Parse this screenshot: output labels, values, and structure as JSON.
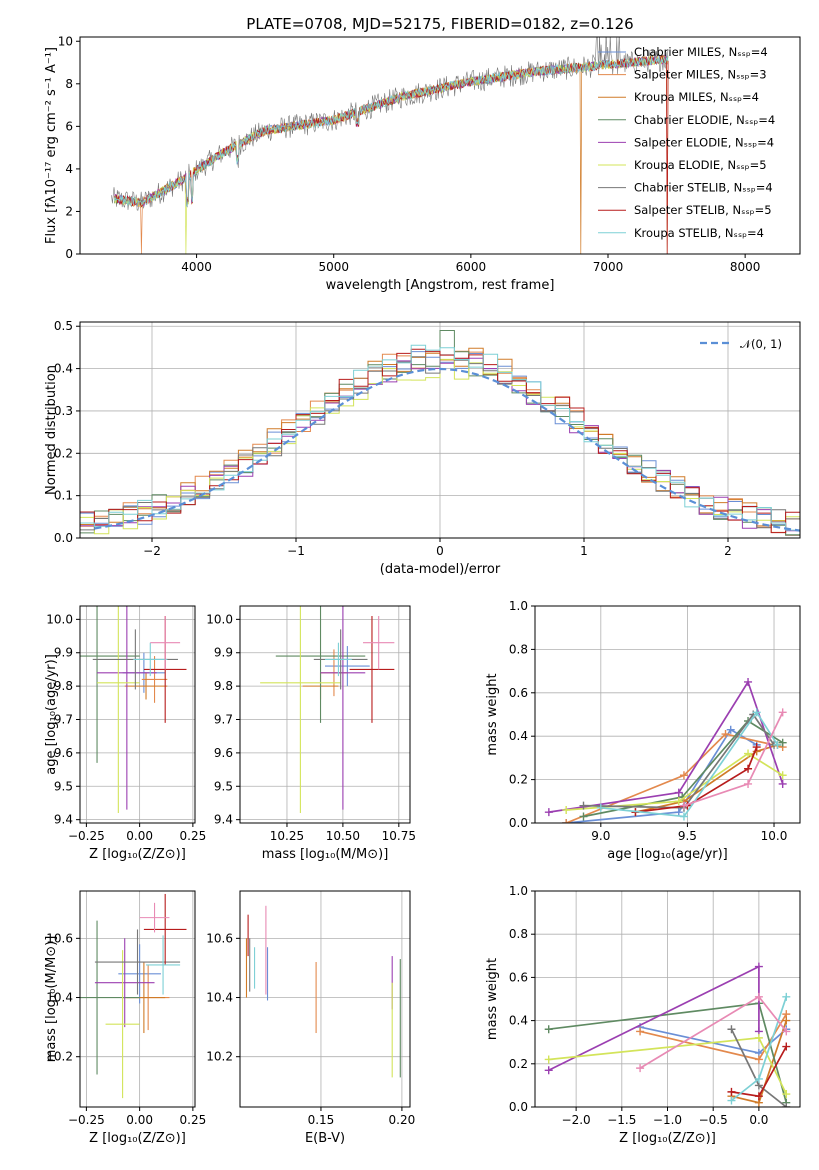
{
  "colors": {
    "series": [
      "#6a8fd6",
      "#e3894d",
      "#d07b28",
      "#5f8a62",
      "#9b3fb1",
      "#d3e45a",
      "#777777",
      "#b71c1c",
      "#7dd0d5"
    ],
    "extra_pink": "#e88ab4",
    "normal_curve": "#5a8fd6",
    "grid": "#b0b0b0"
  },
  "chart_data": [
    {
      "type": "line",
      "title": "PLATE=0708, MJD=52175, FIBERID=0182, z=0.126",
      "xlabel": "wavelength [Angstrom, rest frame]",
      "ylabel": "Flux [fλ10⁻¹⁷ erg cm⁻² s⁻¹ A⁻¹]",
      "xlim": [
        3150,
        8400
      ],
      "ylim": [
        0,
        10.2
      ],
      "xticks": [
        "4000",
        "5000",
        "6000",
        "7000",
        "8000"
      ],
      "yticks": [
        "0",
        "2",
        "4",
        "6",
        "8",
        "10"
      ],
      "grid": false,
      "legend_position": "right",
      "legend": [
        "Chabrier MILES, Nₛₛₚ=4",
        "Salpeter MILES, Nₛₛₚ=3",
        "Kroupa MILES, Nₛₛₚ=4",
        "Chabrier ELODIE, Nₛₛₚ=4",
        "Salpeter ELODIE, Nₛₛₚ=4",
        "Kroupa ELODIE, Nₛₛₚ=5",
        "Chabrier STELIB, Nₛₛₚ=4",
        "Salpeter STELIB, Nₛₛₚ=5",
        "Kroupa STELIB, Nₛₛₚ=4"
      ],
      "continuum": {
        "x": [
          3400,
          3600,
          3900,
          4200,
          4500,
          5000,
          5500,
          6000,
          6500,
          7000,
          7500
        ],
        "y": [
          2.6,
          2.4,
          3.5,
          4.8,
          5.8,
          6.3,
          7.4,
          8.1,
          8.6,
          8.9,
          9.2
        ]
      },
      "gaps": [
        3600,
        3920,
        4950,
        6800,
        7430
      ]
    },
    {
      "type": "bar",
      "xlabel": "(data-model)/error",
      "ylabel": "Normed distribution",
      "xlim": [
        -2.5,
        2.5
      ],
      "ylim": [
        0,
        0.51
      ],
      "xticks": [
        "−2",
        "−1",
        "0",
        "1",
        "2"
      ],
      "yticks": [
        "0.0",
        "0.1",
        "0.2",
        "0.3",
        "0.4",
        "0.5"
      ],
      "grid": true,
      "legend_position": "top-right",
      "legend": [
        "𝒩(0, 1)"
      ],
      "bin_width": 0.1,
      "normal_mean": 0,
      "normal_sigma": 1
    },
    {
      "type": "scatter",
      "xlabel": "Z [log₁₀(Z/Z⊙)]",
      "ylabel": "age  [log₁₀(age/yr)]",
      "xlim": [
        -0.28,
        0.26
      ],
      "ylim": [
        9.39,
        10.04
      ],
      "xticks": [
        "−0.25",
        "0.00",
        "0.25"
      ],
      "yticks": [
        "9.4",
        "9.5",
        "9.6",
        "9.7",
        "9.8",
        "9.9",
        "10.0"
      ],
      "grid": true,
      "errorbars": [
        {
          "x": 0.02,
          "y": 9.84,
          "xerr": 0.1,
          "yerr": 0.06
        },
        {
          "x": 0.07,
          "y": 9.82,
          "xerr": 0.06,
          "yerr": 0.07
        },
        {
          "x": 0.03,
          "y": 9.8,
          "xerr": 0.1,
          "yerr": 0.04
        },
        {
          "x": -0.2,
          "y": 9.89,
          "xerr": 0.2,
          "yerr": 0.32
        },
        {
          "x": -0.06,
          "y": 9.84,
          "xerr": 0.14,
          "yerr": 0.41
        },
        {
          "x": -0.1,
          "y": 9.81,
          "xerr": 0.1,
          "yerr": 0.39
        },
        {
          "x": -0.02,
          "y": 9.88,
          "xerr": 0.2,
          "yerr": 0.09
        },
        {
          "x": 0.12,
          "y": 9.85,
          "xerr": 0.1,
          "yerr": 0.16
        },
        {
          "x": 0.05,
          "y": 9.88,
          "xerr": 0.08,
          "yerr": 0.05
        },
        {
          "x": 0.12,
          "y": 9.93,
          "xerr": 0.07,
          "yerr": 0.08
        }
      ]
    },
    {
      "type": "scatter",
      "xlabel": "mass [log₁₀(M/M⊙)]",
      "ylabel": "",
      "xlim": [
        10.04,
        10.8
      ],
      "ylim": [
        9.39,
        10.04
      ],
      "xticks": [
        "10.25",
        "10.50",
        "10.75"
      ],
      "yticks": [
        "9.4",
        "9.5",
        "9.6",
        "9.7",
        "9.8",
        "9.9",
        "10.0"
      ],
      "grid": true,
      "errorbars": [
        {
          "x": 10.52,
          "y": 9.86,
          "xerr": 0.1,
          "yerr": 0.06
        },
        {
          "x": 10.46,
          "y": 9.84,
          "xerr": 0.06,
          "yerr": 0.07
        },
        {
          "x": 10.4,
          "y": 9.8,
          "xerr": 0.08,
          "yerr": 0.04
        },
        {
          "x": 10.4,
          "y": 9.89,
          "xerr": 0.2,
          "yerr": 0.2
        },
        {
          "x": 10.5,
          "y": 9.84,
          "xerr": 0.1,
          "yerr": 0.41
        },
        {
          "x": 10.31,
          "y": 9.81,
          "xerr": 0.18,
          "yerr": 0.39
        },
        {
          "x": 10.49,
          "y": 9.88,
          "xerr": 0.12,
          "yerr": 0.09
        },
        {
          "x": 10.63,
          "y": 9.85,
          "xerr": 0.1,
          "yerr": 0.16
        },
        {
          "x": 10.48,
          "y": 9.88,
          "xerr": 0.06,
          "yerr": 0.05
        },
        {
          "x": 10.66,
          "y": 9.93,
          "xerr": 0.07,
          "yerr": 0.08
        }
      ]
    },
    {
      "type": "line",
      "xlabel": "age  [log₁₀(age/yr)]",
      "ylabel": "mass weight",
      "xlim": [
        8.62,
        10.15
      ],
      "ylim": [
        0,
        1
      ],
      "xticks": [
        "9.0",
        "9.5",
        "10.0"
      ],
      "yticks": [
        "0.0",
        "0.2",
        "0.4",
        "0.6",
        "0.8",
        "1.0"
      ],
      "grid": true,
      "series": [
        {
          "x": [
            8.8,
            9.45,
            9.75,
            9.9
          ],
          "y": [
            0.0,
            0.05,
            0.43,
            0.36
          ]
        },
        {
          "x": [
            8.8,
            9.48,
            9.72,
            10.05
          ],
          "y": [
            0.0,
            0.22,
            0.41,
            0.35
          ]
        },
        {
          "x": [
            9.2,
            9.48,
            9.9,
            10.02
          ],
          "y": [
            0.05,
            0.1,
            0.33,
            0.36
          ]
        },
        {
          "x": [
            8.9,
            9.47,
            9.85,
            10.05
          ],
          "y": [
            0.03,
            0.12,
            0.47,
            0.37
          ]
        },
        {
          "x": [
            8.7,
            9.45,
            9.85,
            10.05
          ],
          "y": [
            0.05,
            0.14,
            0.65,
            0.18
          ]
        },
        {
          "x": [
            8.8,
            9.45,
            9.85,
            10.05
          ],
          "y": [
            0.06,
            0.1,
            0.32,
            0.22
          ]
        },
        {
          "x": [
            8.9,
            9.48,
            9.88,
            10.0
          ],
          "y": [
            0.08,
            0.07,
            0.5,
            0.36
          ]
        },
        {
          "x": [
            9.2,
            9.5,
            9.85,
            9.9
          ],
          "y": [
            0.05,
            0.08,
            0.25,
            0.35
          ]
        },
        {
          "x": [
            9.0,
            9.48,
            9.9,
            10.02
          ],
          "y": [
            0.07,
            0.03,
            0.51,
            0.36
          ]
        },
        {
          "x": [
            9.48,
            9.85,
            10.05
          ],
          "y": [
            0.08,
            0.18,
            0.51
          ]
        }
      ]
    },
    {
      "type": "scatter",
      "xlabel": "Z [log₁₀(Z/Z⊙)]",
      "ylabel": "mass [log₁₀(M/M⊙)]",
      "xlim": [
        -0.28,
        0.26
      ],
      "ylim": [
        10.03,
        10.76
      ],
      "xticks": [
        "−0.25",
        "0.00",
        "0.25"
      ],
      "yticks": [
        "10.2",
        "10.4",
        "10.6"
      ],
      "grid": true,
      "errorbars": [
        {
          "x": 0.0,
          "y": 10.48,
          "xerr": 0.1,
          "yerr": 0.1
        },
        {
          "x": 0.04,
          "y": 10.4,
          "xerr": 0.1,
          "yerr": 0.11
        },
        {
          "x": 0.02,
          "y": 10.4,
          "xerr": 0.1,
          "yerr": 0.12
        },
        {
          "x": -0.2,
          "y": 10.4,
          "xerr": 0.2,
          "yerr": 0.26
        },
        {
          "x": -0.07,
          "y": 10.45,
          "xerr": 0.14,
          "yerr": 0.15
        },
        {
          "x": -0.08,
          "y": 10.31,
          "xerr": 0.08,
          "yerr": 0.25
        },
        {
          "x": -0.01,
          "y": 10.52,
          "xerr": 0.2,
          "yerr": 0.11
        },
        {
          "x": 0.12,
          "y": 10.63,
          "xerr": 0.1,
          "yerr": 0.12
        },
        {
          "x": 0.11,
          "y": 10.51,
          "xerr": 0.08,
          "yerr": 0.1
        },
        {
          "x": 0.07,
          "y": 10.67,
          "xerr": 0.07,
          "yerr": 0.05
        }
      ]
    },
    {
      "type": "scatter",
      "xlabel": "E(B-V)",
      "ylabel": "",
      "xlim": [
        0.1,
        0.205
      ],
      "ylim": [
        10.03,
        10.76
      ],
      "xticks": [
        "0.15",
        "0.20"
      ],
      "yticks": [
        "10.2",
        "10.4",
        "10.6"
      ],
      "grid": true,
      "errorbars": [
        {
          "x": 0.117,
          "y": 10.48,
          "xerr": 0,
          "yerr": 0.09
        },
        {
          "x": 0.147,
          "y": 10.4,
          "xerr": 0,
          "yerr": 0.12
        },
        {
          "x": 0.104,
          "y": 10.5,
          "xerr": 0,
          "yerr": 0.1
        },
        {
          "x": 0.199,
          "y": 10.33,
          "xerr": 0,
          "yerr": 0.2
        },
        {
          "x": 0.194,
          "y": 10.45,
          "xerr": 0,
          "yerr": 0.09
        },
        {
          "x": 0.194,
          "y": 10.29,
          "xerr": 0,
          "yerr": 0.16
        },
        {
          "x": 0.106,
          "y": 10.51,
          "xerr": 0,
          "yerr": 0.09
        },
        {
          "x": 0.105,
          "y": 10.61,
          "xerr": 0,
          "yerr": 0.07
        },
        {
          "x": 0.109,
          "y": 10.5,
          "xerr": 0,
          "yerr": 0.07
        },
        {
          "x": 0.116,
          "y": 10.56,
          "xerr": 0,
          "yerr": 0.15
        }
      ]
    },
    {
      "type": "line",
      "xlabel": "Z [log₁₀(Z/Z⊙)]",
      "ylabel": "mass weight",
      "xlim": [
        -2.45,
        0.45
      ],
      "ylim": [
        0,
        1
      ],
      "xticks": [
        "−2.0",
        "−1.5",
        "−1.0",
        "−0.5",
        "0.0"
      ],
      "yticks": [
        "0.0",
        "0.2",
        "0.4",
        "0.6",
        "0.8",
        "1.0"
      ],
      "grid": true,
      "series": [
        {
          "x": [
            -1.3,
            0.0,
            0.3
          ],
          "y": [
            0.37,
            0.25,
            0.36
          ]
        },
        {
          "x": [
            -1.3,
            0.0,
            0.3
          ],
          "y": [
            0.35,
            0.22,
            0.43
          ]
        },
        {
          "x": [
            -0.3,
            0.0,
            0.3
          ],
          "y": [
            0.05,
            0.02,
            0.4
          ]
        },
        {
          "x": [
            -2.3,
            0.0,
            0.3
          ],
          "y": [
            0.36,
            0.48,
            0.02
          ]
        },
        {
          "x": [
            -2.3,
            0.0,
            0.0
          ],
          "y": [
            0.17,
            0.65,
            0.35
          ]
        },
        {
          "x": [
            -2.3,
            0.0,
            0.3
          ],
          "y": [
            0.22,
            0.32,
            0.06
          ]
        },
        {
          "x": [
            -0.3,
            0.0,
            0.3
          ],
          "y": [
            0.36,
            0.1,
            0.0
          ]
        },
        {
          "x": [
            -0.3,
            0.0,
            0.3
          ],
          "y": [
            0.07,
            0.05,
            0.28
          ]
        },
        {
          "x": [
            -0.3,
            0.0,
            0.3
          ],
          "y": [
            0.03,
            0.13,
            0.51
          ]
        },
        {
          "x": [
            -1.3,
            0.0,
            0.3
          ],
          "y": [
            0.18,
            0.51,
            0.35
          ]
        }
      ]
    }
  ]
}
